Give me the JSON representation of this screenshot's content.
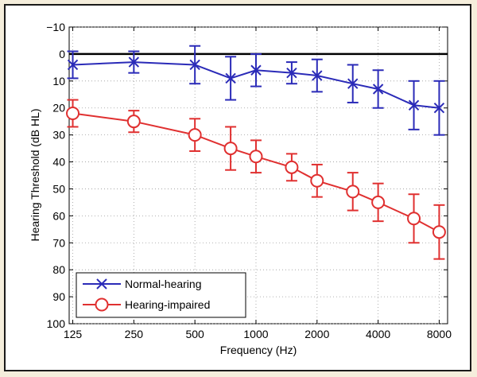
{
  "chart_data": {
    "type": "line",
    "title": "",
    "xlabel": "Frequency (Hz)",
    "ylabel": "Hearing Threshold (dB HL)",
    "x_scale": "log",
    "y_inverted": true,
    "ylim": [
      -10,
      100
    ],
    "grid": true,
    "legend_position": "bottom-left",
    "x_ticks": [
      "125",
      "250",
      "500",
      "1000",
      "2000",
      "4000",
      "8000"
    ],
    "y_ticks": [
      "−10",
      "0",
      "10",
      "20",
      "30",
      "40",
      "50",
      "60",
      "70",
      "80",
      "90",
      "100"
    ],
    "reference_line_y": 0,
    "x": [
      125,
      250,
      500,
      750,
      1000,
      1500,
      2000,
      3000,
      4000,
      6000,
      8000
    ],
    "series": [
      {
        "name": "Normal-hearing",
        "color": "#2b2bb8",
        "marker": "x",
        "values": [
          4,
          3,
          4,
          9,
          6,
          7,
          8,
          11,
          13,
          19,
          20
        ],
        "errors": [
          5,
          4,
          7,
          8,
          6,
          4,
          6,
          7,
          7,
          9,
          10
        ]
      },
      {
        "name": "Hearing-impaired",
        "color": "#e03030",
        "marker": "o",
        "values": [
          22,
          25,
          30,
          35,
          38,
          42,
          47,
          51,
          55,
          61,
          66
        ],
        "errors": [
          5,
          4,
          6,
          8,
          6,
          5,
          6,
          7,
          7,
          9,
          10
        ]
      }
    ]
  }
}
